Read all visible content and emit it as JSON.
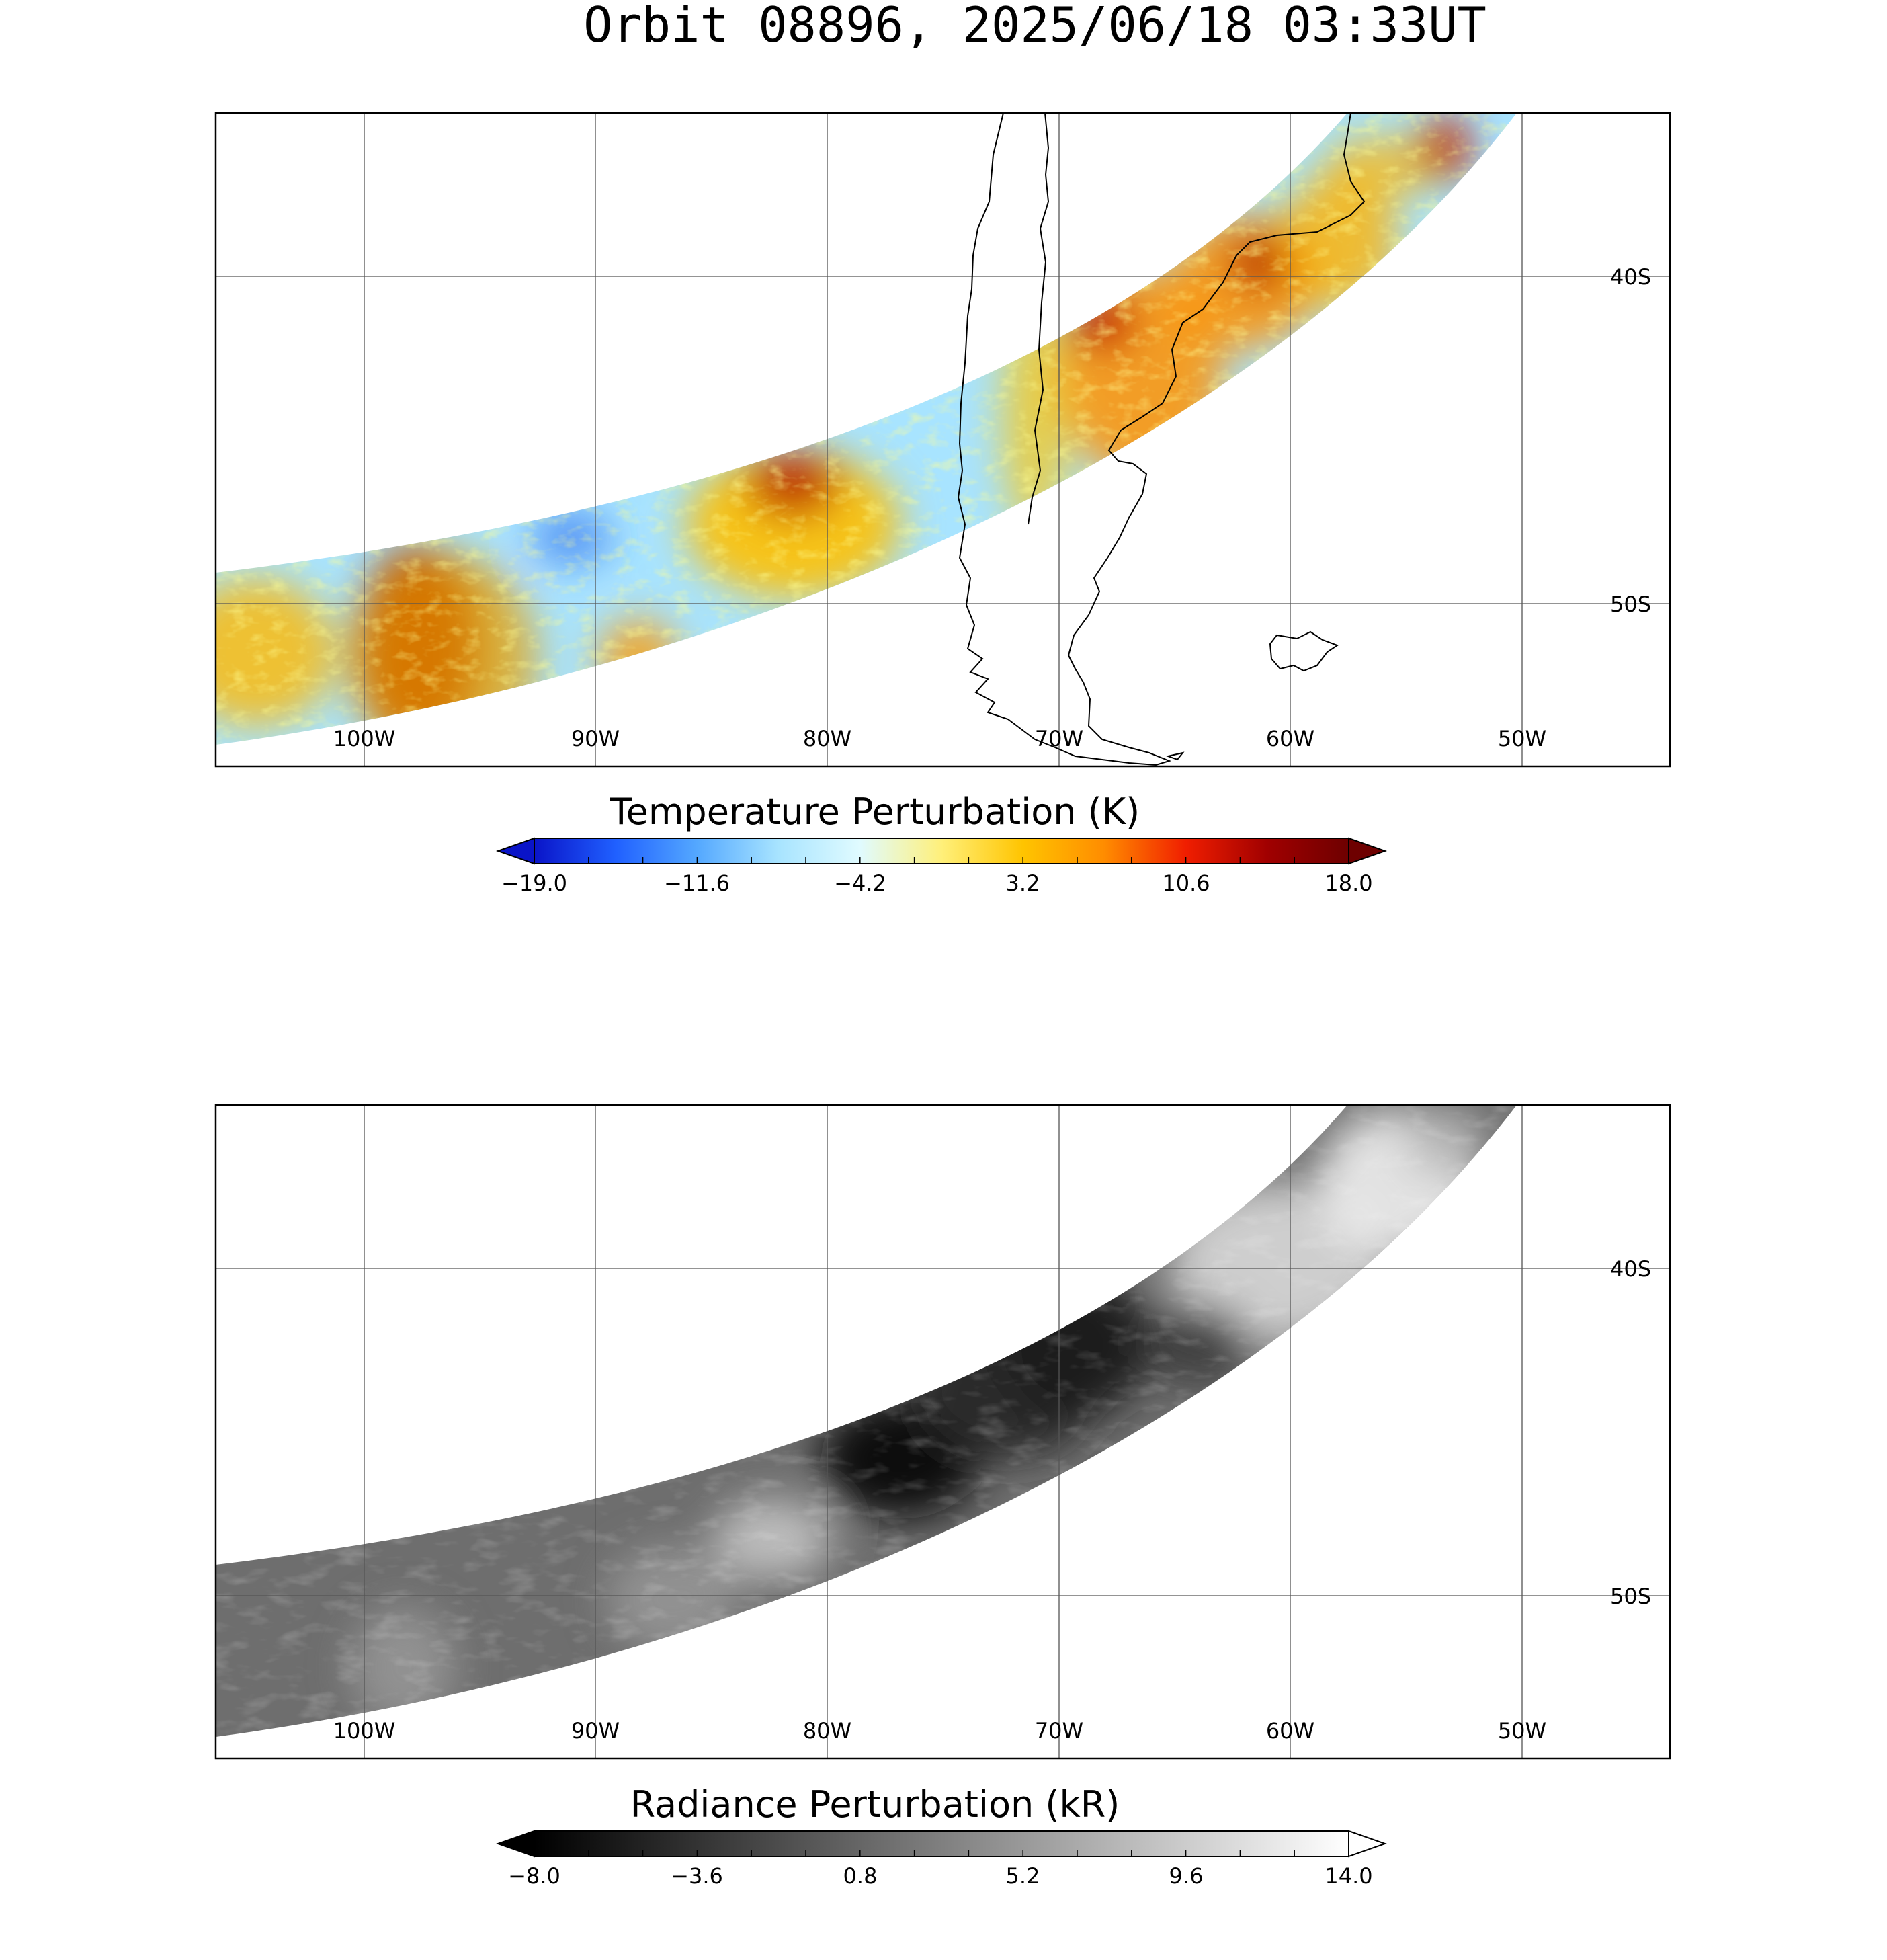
{
  "title": "Orbit 08896, 2025/06/18 03:33UT",
  "maps": {
    "longitude_ticks": [
      "100W",
      "90W",
      "80W",
      "70W",
      "60W",
      "50W"
    ],
    "latitude_ticks": [
      "40S",
      "50S"
    ]
  },
  "temperature_panel": {
    "colorbar_label": "Temperature Perturbation (K)",
    "colorbar_ticks": [
      "−19.0",
      "−11.6",
      "−4.2",
      "3.2",
      "10.6",
      "18.0"
    ],
    "colorbar_range": [
      -19.0,
      18.0
    ],
    "colormap": [
      "#0a14c8",
      "#2060ff",
      "#54a8ff",
      "#a8e4ff",
      "#e0fbff",
      "#fff07a",
      "#ffc400",
      "#ff8c00",
      "#f01e00",
      "#a00000",
      "#6e0000"
    ]
  },
  "radiance_panel": {
    "colorbar_label": "Radiance Perturbation (kR)",
    "colorbar_ticks": [
      "−8.0",
      "−3.6",
      "0.8",
      "5.2",
      "9.6",
      "14.0"
    ],
    "colorbar_range": [
      -8.0,
      14.0
    ],
    "colormap": [
      "#000000",
      "#ffffff"
    ]
  }
}
